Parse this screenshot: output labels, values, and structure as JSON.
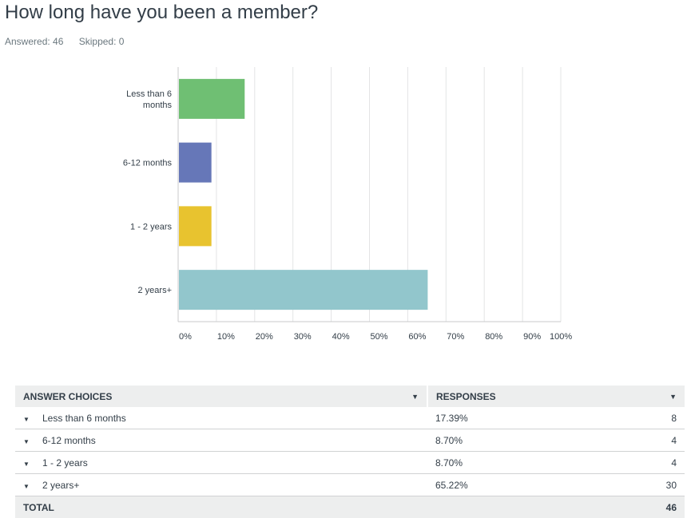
{
  "question": {
    "title": "How long have you been a member?",
    "answered": "Answered: 46",
    "skipped": "Skipped: 0"
  },
  "colors": {
    "bars": [
      "#6fbf73",
      "#6677b8",
      "#e8c32f",
      "#92c6cc"
    ],
    "grid": "#e3e4e5",
    "axis": "#c8cacb"
  },
  "chart_data": {
    "type": "bar",
    "orientation": "horizontal",
    "categories": [
      "Less than 6 months",
      "6-12 months",
      "1 - 2 years",
      "2 years+"
    ],
    "category_label_lines": [
      [
        "Less than 6",
        "months"
      ],
      [
        "6-12 months"
      ],
      [
        "1 - 2 years"
      ],
      [
        "2 years+"
      ]
    ],
    "values": [
      17.39,
      8.7,
      8.7,
      65.22
    ],
    "xlim": [
      0,
      100
    ],
    "x_ticks": [
      "0%",
      "10%",
      "20%",
      "30%",
      "40%",
      "50%",
      "60%",
      "70%",
      "80%",
      "90%",
      "100%"
    ],
    "grid": true
  },
  "table": {
    "headers": [
      "ANSWER CHOICES",
      "RESPONSES"
    ],
    "sort_icon": "caret-down-icon",
    "rows": [
      {
        "choice": "Less than 6 months",
        "percent": "17.39%",
        "count": "8"
      },
      {
        "choice": "6-12 months",
        "percent": "8.70%",
        "count": "4"
      },
      {
        "choice": "1 - 2 years",
        "percent": "8.70%",
        "count": "4"
      },
      {
        "choice": "2 years+",
        "percent": "65.22%",
        "count": "30"
      }
    ],
    "total_label": "TOTAL",
    "total_value": "46"
  }
}
